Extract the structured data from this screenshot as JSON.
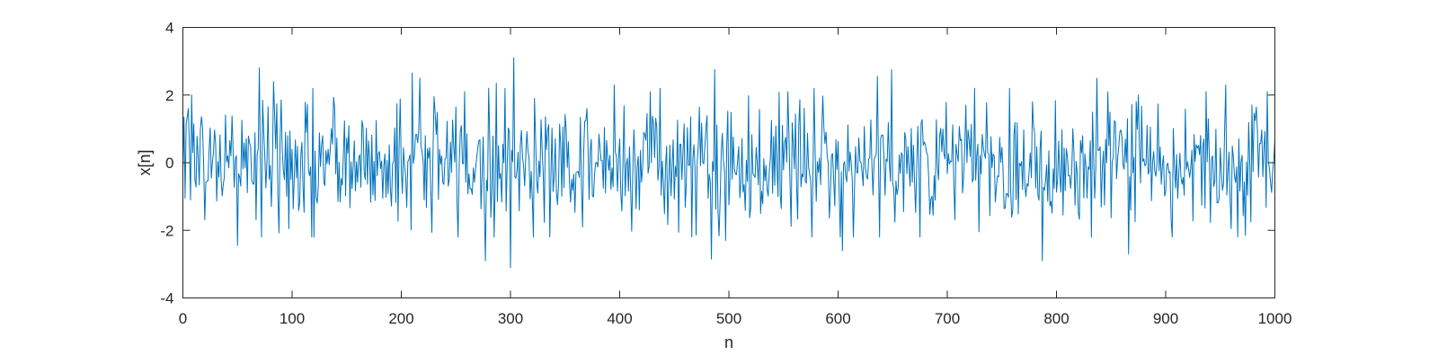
{
  "chart_data": {
    "type": "line",
    "title": "",
    "xlabel": "n",
    "ylabel": "x[n]",
    "xlim": [
      0,
      1000
    ],
    "ylim": [
      -4,
      4
    ],
    "xticks": [
      0,
      100,
      200,
      300,
      400,
      500,
      600,
      700,
      800,
      900,
      1000
    ],
    "yticks": [
      -4,
      -2,
      0,
      2,
      4
    ],
    "grid": false,
    "legend": "none",
    "box": true,
    "line_color": "#0072BD",
    "axis_color": "#262626",
    "series": [
      {
        "x_start": 0,
        "x_step": 1,
        "length": 1001,
        "distribution": "gaussian white noise, mean 0, standard deviation ≈ 1",
        "values_approx": [
          -0.2,
          1.35,
          -1.05,
          1.15,
          -1.55,
          1.6,
          0.4,
          -1.1,
          2.0,
          0.3
        ],
        "notable_points": [
          {
            "x": 4,
            "y": 1.35
          },
          {
            "x": 50,
            "y": -2.45
          },
          {
            "x": 70,
            "y": 2.8
          },
          {
            "x": 83,
            "y": 2.4
          },
          {
            "x": 97,
            "y": -1.95
          },
          {
            "x": 118,
            "y": -2.2
          },
          {
            "x": 210,
            "y": 2.65
          },
          {
            "x": 217,
            "y": 2.5
          },
          {
            "x": 258,
            "y": 2.1
          },
          {
            "x": 277,
            "y": -2.9
          },
          {
            "x": 287,
            "y": 2.35
          },
          {
            "x": 300,
            "y": -3.1
          },
          {
            "x": 303,
            "y": 3.1
          },
          {
            "x": 322,
            "y": 1.9
          },
          {
            "x": 366,
            "y": -1.9
          },
          {
            "x": 395,
            "y": 2.3
          },
          {
            "x": 428,
            "y": 2.1
          },
          {
            "x": 484,
            "y": -2.85
          },
          {
            "x": 487,
            "y": 2.75
          },
          {
            "x": 497,
            "y": -2.3
          },
          {
            "x": 554,
            "y": 2.1
          },
          {
            "x": 604,
            "y": -2.6
          },
          {
            "x": 636,
            "y": 2.55
          },
          {
            "x": 649,
            "y": 2.75
          },
          {
            "x": 675,
            "y": -2.2
          },
          {
            "x": 778,
            "y": 1.8
          },
          {
            "x": 787,
            "y": -2.9
          },
          {
            "x": 837,
            "y": 2.5
          },
          {
            "x": 866,
            "y": -2.7
          },
          {
            "x": 875,
            "y": 2.0
          },
          {
            "x": 955,
            "y": 2.3
          },
          {
            "x": 973,
            "y": -2.15
          },
          {
            "x": 993,
            "y": 2.1
          },
          {
            "x": 1000,
            "y": 0.7
          }
        ]
      }
    ]
  }
}
